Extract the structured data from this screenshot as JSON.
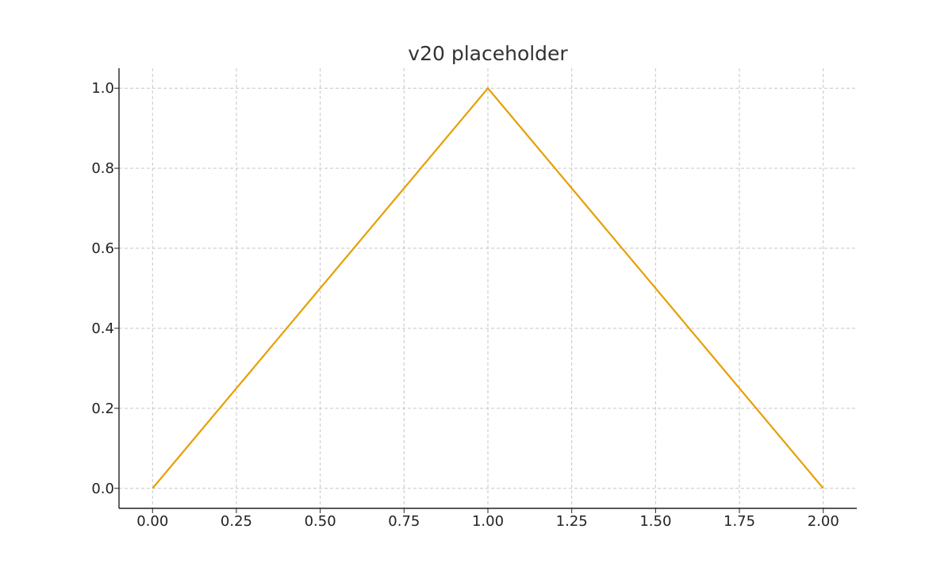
{
  "chart_data": {
    "type": "line",
    "title": "v20 placeholder",
    "xlabel": "",
    "ylabel": "",
    "xlim": [
      -0.1,
      2.1
    ],
    "ylim": [
      -0.05,
      1.05
    ],
    "x_ticks": [
      0.0,
      0.25,
      0.5,
      0.75,
      1.0,
      1.25,
      1.5,
      1.75,
      2.0
    ],
    "x_tick_labels": [
      "0.00",
      "0.25",
      "0.50",
      "0.75",
      "1.00",
      "1.25",
      "1.50",
      "1.75",
      "2.00"
    ],
    "y_ticks": [
      0.0,
      0.2,
      0.4,
      0.6,
      0.8,
      1.0
    ],
    "y_tick_labels": [
      "0.0",
      "0.2",
      "0.4",
      "0.6",
      "0.8",
      "1.0"
    ],
    "grid": true,
    "grid_style": "dashed",
    "legend": false,
    "series": [
      {
        "color": "#E69F00",
        "x": [
          0.0,
          1.0,
          2.0
        ],
        "y": [
          0.0,
          1.0,
          0.0
        ]
      }
    ]
  }
}
